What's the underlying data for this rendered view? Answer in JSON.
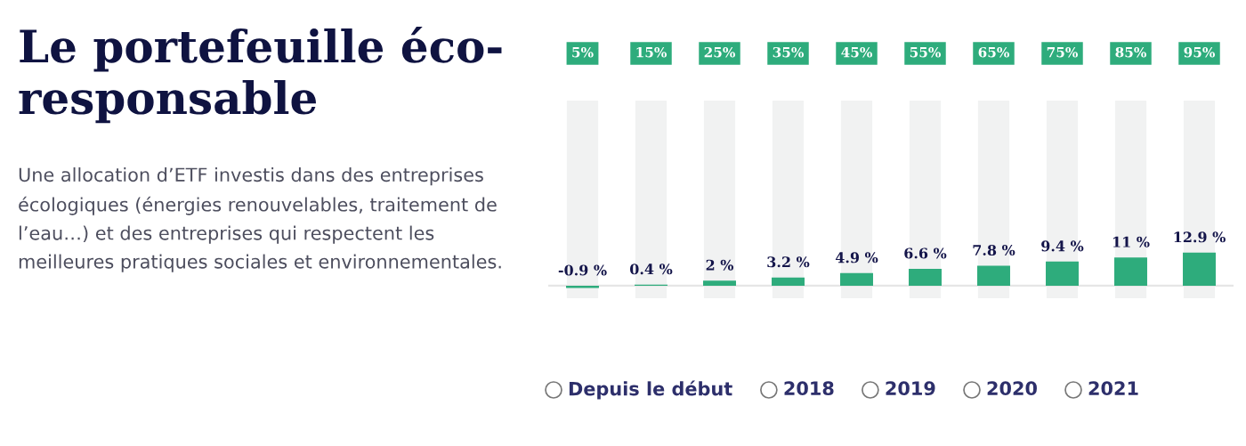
{
  "chart_data": {
    "type": "bar",
    "title": "Le portefeuille éco-\nresponsable",
    "subtitle": "Une allocation d’ETF investis dans des entreprises\nécologiques (énergies renouvelables, traitement de\nl’eau…) et des entreprises qui respectent les\nmeilleures pratiques sociales et environnementales.",
    "categories": [
      "5%",
      "15%",
      "25%",
      "35%",
      "45%",
      "55%",
      "65%",
      "75%",
      "85%",
      "95%"
    ],
    "values": [
      -0.9,
      0.4,
      2,
      3.2,
      4.9,
      6.6,
      7.8,
      9.4,
      11,
      12.9
    ],
    "value_labels": [
      "-0.9 %",
      "0.4 %",
      "2 %",
      "3.2 %",
      "4.9 %",
      "6.6 %",
      "7.8 %",
      "9.4 %",
      "11 %",
      "12.9 %"
    ],
    "color": "#2eac7c",
    "annotations": [
      "Depuis le début",
      "2018",
      "2019",
      "2020",
      "2021"
    ],
    "data_labels": false
  }
}
